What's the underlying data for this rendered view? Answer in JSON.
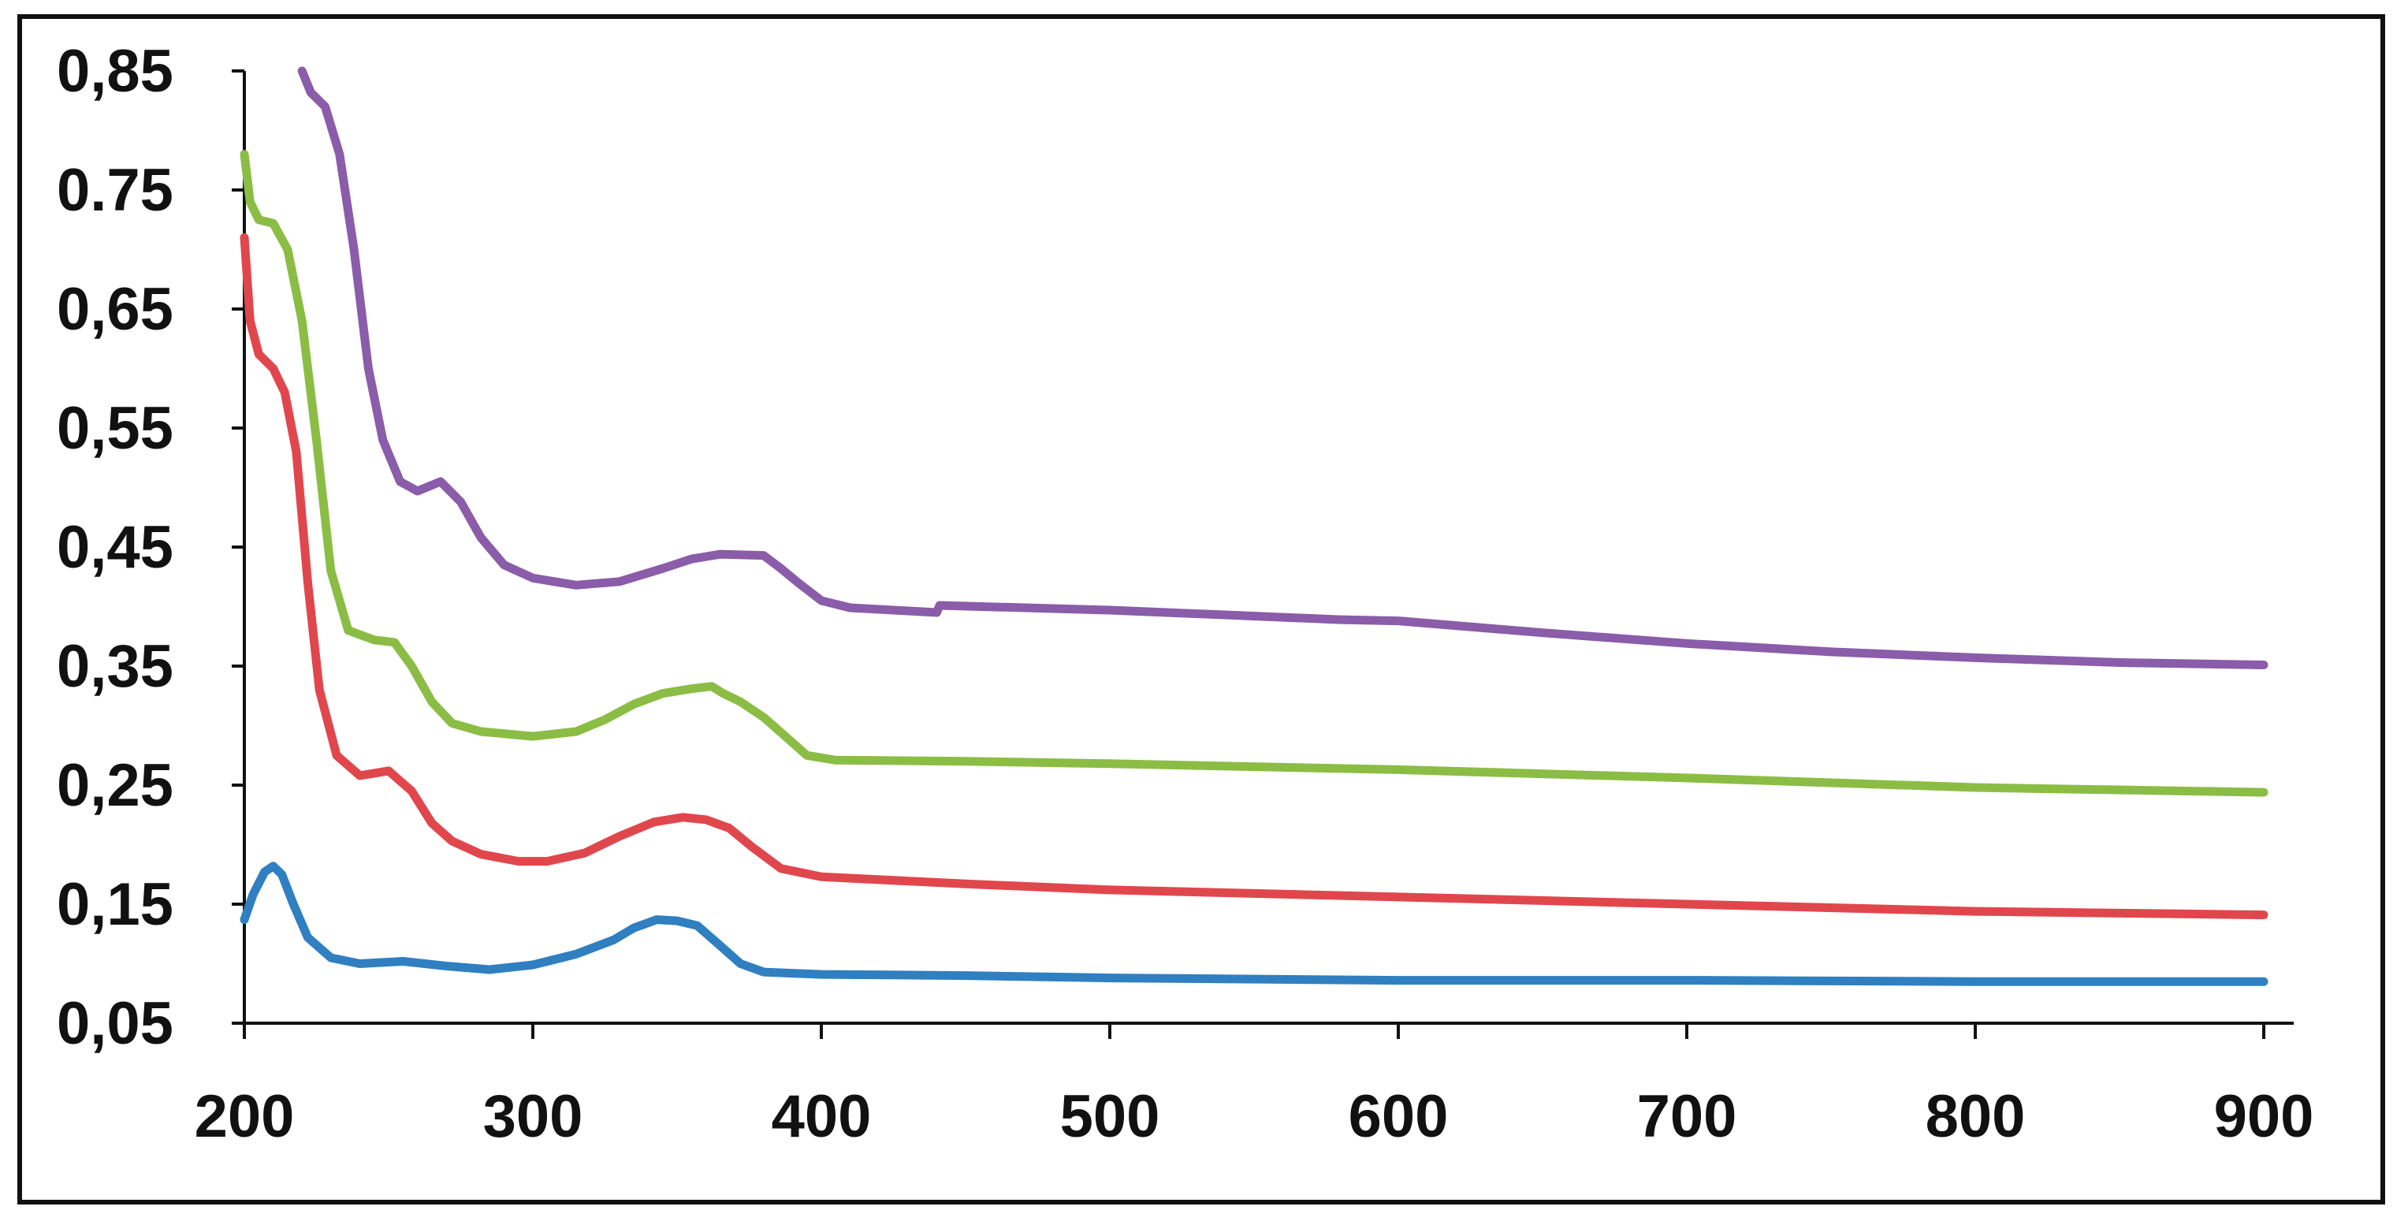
{
  "chart_data": {
    "type": "line",
    "title": "",
    "xlabel": "",
    "ylabel": "",
    "xlim": [
      200,
      900
    ],
    "ylim": [
      0.05,
      0.85
    ],
    "grid": false,
    "legend": "none",
    "x_ticks": [
      {
        "value": 200,
        "label": "200"
      },
      {
        "value": 300,
        "label": "300"
      },
      {
        "value": 400,
        "label": "400"
      },
      {
        "value": 500,
        "label": "500"
      },
      {
        "value": 600,
        "label": "600"
      },
      {
        "value": 700,
        "label": "700"
      },
      {
        "value": 800,
        "label": "800"
      },
      {
        "value": 900,
        "label": "900"
      }
    ],
    "y_ticks": [
      {
        "value": 0.05,
        "label": "0,05"
      },
      {
        "value": 0.15,
        "label": "0,15"
      },
      {
        "value": 0.25,
        "label": "0,25"
      },
      {
        "value": 0.35,
        "label": "0,35"
      },
      {
        "value": 0.45,
        "label": "0,45"
      },
      {
        "value": 0.55,
        "label": "0,55"
      },
      {
        "value": 0.65,
        "label": "0,65"
      },
      {
        "value": 0.75,
        "label": "0.75"
      },
      {
        "value": 0.85,
        "label": "0,85"
      }
    ],
    "series": [
      {
        "name": "blue",
        "color": "#2f7fc1",
        "points": [
          [
            200,
            0.137
          ],
          [
            203,
            0.158
          ],
          [
            207,
            0.177
          ],
          [
            210,
            0.182
          ],
          [
            213,
            0.175
          ],
          [
            217,
            0.15
          ],
          [
            222,
            0.122
          ],
          [
            230,
            0.105
          ],
          [
            240,
            0.1
          ],
          [
            255,
            0.102
          ],
          [
            270,
            0.098
          ],
          [
            285,
            0.095
          ],
          [
            300,
            0.099
          ],
          [
            315,
            0.108
          ],
          [
            328,
            0.12
          ],
          [
            335,
            0.13
          ],
          [
            343,
            0.137
          ],
          [
            350,
            0.136
          ],
          [
            357,
            0.132
          ],
          [
            365,
            0.115
          ],
          [
            372,
            0.1
          ],
          [
            380,
            0.093
          ],
          [
            400,
            0.091
          ],
          [
            450,
            0.09
          ],
          [
            500,
            0.088
          ],
          [
            600,
            0.086
          ],
          [
            700,
            0.086
          ],
          [
            800,
            0.085
          ],
          [
            900,
            0.085
          ]
        ]
      },
      {
        "name": "red",
        "color": "#e0474c",
        "points": [
          [
            200,
            0.71
          ],
          [
            202,
            0.64
          ],
          [
            205,
            0.612
          ],
          [
            210,
            0.6
          ],
          [
            214,
            0.58
          ],
          [
            218,
            0.53
          ],
          [
            222,
            0.42
          ],
          [
            226,
            0.33
          ],
          [
            232,
            0.275
          ],
          [
            240,
            0.258
          ],
          [
            250,
            0.262
          ],
          [
            258,
            0.245
          ],
          [
            265,
            0.218
          ],
          [
            272,
            0.203
          ],
          [
            282,
            0.192
          ],
          [
            295,
            0.186
          ],
          [
            305,
            0.186
          ],
          [
            318,
            0.193
          ],
          [
            330,
            0.207
          ],
          [
            342,
            0.219
          ],
          [
            352,
            0.223
          ],
          [
            360,
            0.221
          ],
          [
            368,
            0.214
          ],
          [
            376,
            0.198
          ],
          [
            386,
            0.18
          ],
          [
            400,
            0.173
          ],
          [
            450,
            0.167
          ],
          [
            500,
            0.162
          ],
          [
            600,
            0.156
          ],
          [
            700,
            0.15
          ],
          [
            800,
            0.144
          ],
          [
            900,
            0.141
          ]
        ]
      },
      {
        "name": "green",
        "color": "#8bbd45",
        "points": [
          [
            200,
            0.78
          ],
          [
            202,
            0.74
          ],
          [
            205,
            0.725
          ],
          [
            210,
            0.722
          ],
          [
            215,
            0.7
          ],
          [
            220,
            0.64
          ],
          [
            225,
            0.54
          ],
          [
            230,
            0.43
          ],
          [
            236,
            0.38
          ],
          [
            245,
            0.372
          ],
          [
            252,
            0.37
          ],
          [
            258,
            0.35
          ],
          [
            265,
            0.32
          ],
          [
            272,
            0.302
          ],
          [
            282,
            0.295
          ],
          [
            300,
            0.291
          ],
          [
            315,
            0.295
          ],
          [
            325,
            0.305
          ],
          [
            335,
            0.318
          ],
          [
            345,
            0.327
          ],
          [
            355,
            0.331
          ],
          [
            362,
            0.333
          ],
          [
            366,
            0.327
          ],
          [
            372,
            0.32
          ],
          [
            380,
            0.307
          ],
          [
            388,
            0.29
          ],
          [
            395,
            0.275
          ],
          [
            405,
            0.271
          ],
          [
            450,
            0.27
          ],
          [
            500,
            0.268
          ],
          [
            600,
            0.263
          ],
          [
            700,
            0.256
          ],
          [
            800,
            0.248
          ],
          [
            900,
            0.244
          ]
        ]
      },
      {
        "name": "purple",
        "color": "#8a5ca9",
        "points": [
          [
            220,
            0.85
          ],
          [
            223,
            0.832
          ],
          [
            228,
            0.82
          ],
          [
            233,
            0.78
          ],
          [
            238,
            0.7
          ],
          [
            243,
            0.6
          ],
          [
            248,
            0.54
          ],
          [
            254,
            0.505
          ],
          [
            260,
            0.497
          ],
          [
            268,
            0.505
          ],
          [
            275,
            0.488
          ],
          [
            282,
            0.458
          ],
          [
            290,
            0.435
          ],
          [
            300,
            0.424
          ],
          [
            315,
            0.418
          ],
          [
            330,
            0.421
          ],
          [
            345,
            0.432
          ],
          [
            355,
            0.44
          ],
          [
            365,
            0.444
          ],
          [
            380,
            0.443
          ],
          [
            386,
            0.432
          ],
          [
            392,
            0.42
          ],
          [
            400,
            0.405
          ],
          [
            410,
            0.399
          ],
          [
            425,
            0.397
          ],
          [
            440,
            0.395
          ],
          [
            441,
            0.401
          ],
          [
            500,
            0.397
          ],
          [
            580,
            0.389
          ],
          [
            600,
            0.388
          ],
          [
            650,
            0.378
          ],
          [
            700,
            0.369
          ],
          [
            750,
            0.362
          ],
          [
            800,
            0.357
          ],
          [
            850,
            0.353
          ],
          [
            900,
            0.351
          ]
        ]
      }
    ]
  }
}
